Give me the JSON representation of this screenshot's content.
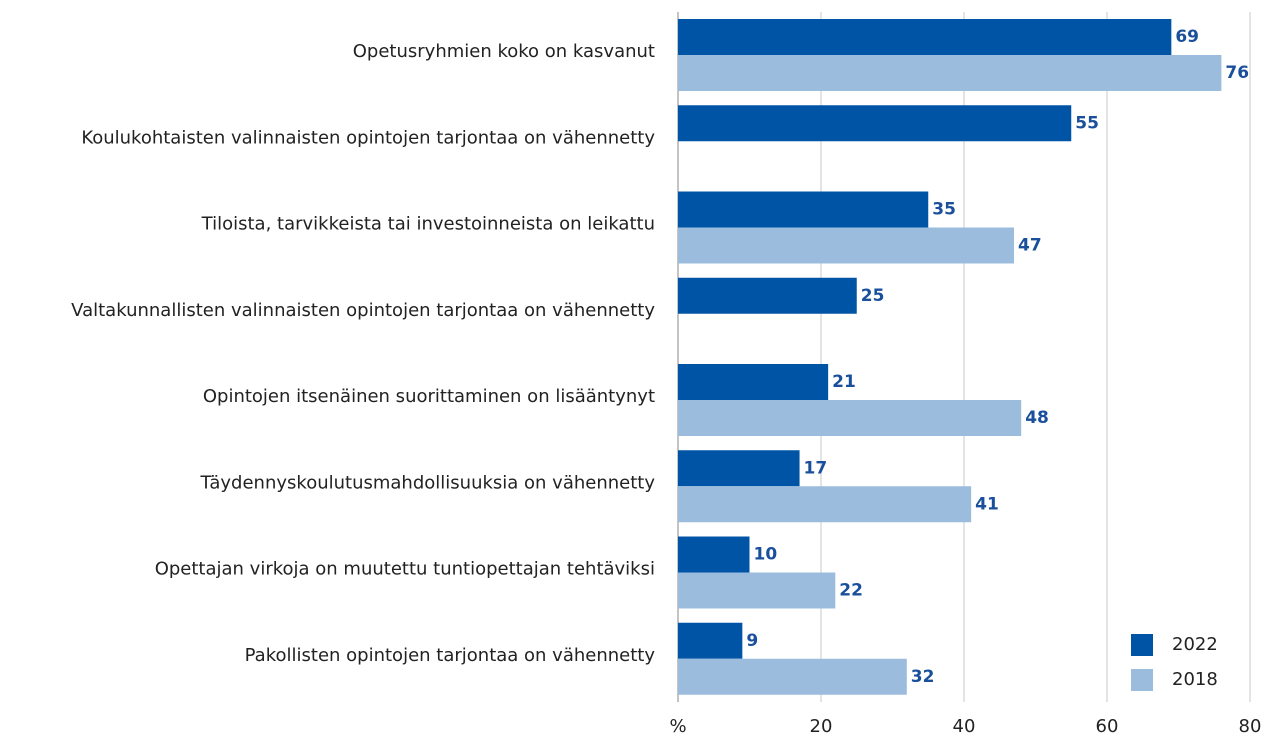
{
  "chart_data": {
    "type": "bar",
    "orientation": "horizontal",
    "categories": [
      "Opetusryhmien koko on kasvanut",
      "Koulukohtaisten valinnaisten opintojen tarjontaa on vähennetty",
      "Tiloista, tarvikkeista tai investoinneista on leikattu",
      "Valtakunnallisten valinnaisten opintojen tarjontaa on vähennetty",
      "Opintojen itsenäinen suorittaminen on lisääntynyt",
      "Täydennyskoulutusmahdollisuuksia on vähennetty",
      "Opettajan virkoja on muutettu tuntiopettajan tehtäviksi",
      "Pakollisten opintojen tarjontaa on vähennetty"
    ],
    "series": [
      {
        "name": "2022",
        "color": "#0054a6",
        "values": [
          69,
          55,
          35,
          25,
          21,
          17,
          10,
          9
        ]
      },
      {
        "name": "2018",
        "color": "#9bbcdd",
        "values": [
          76,
          null,
          47,
          null,
          48,
          41,
          22,
          32
        ]
      }
    ],
    "xlim": [
      0,
      80
    ],
    "xticks": [
      {
        "value": 0,
        "label": "%"
      },
      20,
      40,
      60,
      80
    ],
    "grid": true,
    "legend": "lower right"
  }
}
